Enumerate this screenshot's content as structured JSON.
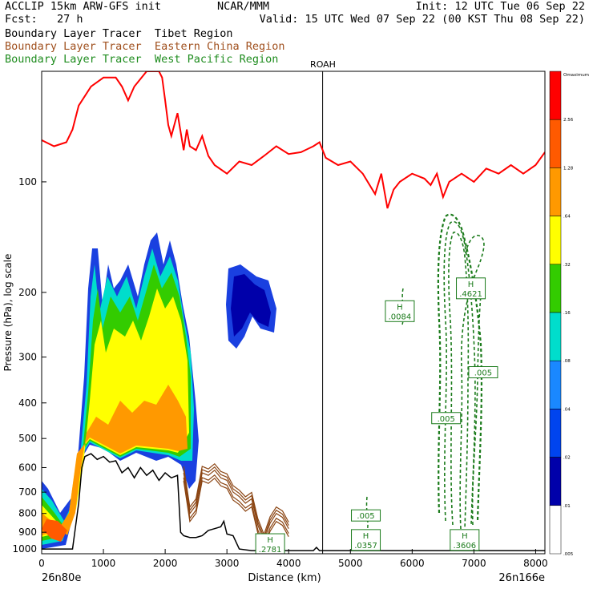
{
  "header": {
    "model": "ACCLIP 15km ARW-GFS init",
    "forecast": "Fcst:   27 h",
    "center": "NCAR/MMM",
    "init": "Init: 12 UTC Tue 06 Sep 22",
    "valid": "Valid: 15 UTC Wed 07 Sep 22 (00 KST Thu 08 Sep 22)"
  },
  "legend": [
    {
      "label": "Boundary Layer Tracer  Tibet Region",
      "color": "#000000"
    },
    {
      "label": "Boundary Layer Tracer  Eastern China Region",
      "color": "#a0501e"
    },
    {
      "label": "Boundary Layer Tracer  West Pacific Region",
      "color": "#1e8c1e"
    }
  ],
  "colors": {
    "tropopause": "#ff0000",
    "terrain": "#000000",
    "eastern_china_contour": "#8b4513",
    "west_pacific_contour": "#1a7a1a",
    "label_box": "#1a7a1a"
  },
  "chart_data": {
    "type": "heatmap",
    "xlabel": "Distance (km)",
    "ylabel": "Pressure (hPa), log scale",
    "x_ticks": [
      0,
      1000,
      2000,
      3000,
      4000,
      5000,
      6000,
      7000,
      8000
    ],
    "y_ticks": [
      100,
      200,
      300,
      400,
      500,
      600,
      700,
      800,
      900,
      1000
    ],
    "xlim": [
      0,
      8150
    ],
    "ylim": [
      1030,
      50
    ],
    "y_scale": "log",
    "endpoint_labels": {
      "left": "26n80e",
      "right": "26n166e"
    },
    "marker": {
      "label": "ROAH",
      "x": 4550
    },
    "colorbar": {
      "labels": [
        "Omaximum",
        "2.56",
        "1.28",
        ".64",
        ".32",
        ".16",
        ".08",
        ".04",
        ".02",
        ".01",
        ".005"
      ],
      "colors": [
        "#ff0000",
        "#ff5a00",
        "#ff9900",
        "#ffff00",
        "#33cc00",
        "#00ddcc",
        "#1a88ff",
        "#0044ee",
        "#0000aa",
        "#ffffff"
      ]
    },
    "tropopause": {
      "x": [
        0,
        200,
        400,
        500,
        600,
        800,
        1000,
        1200,
        1300,
        1400,
        1500,
        1700,
        1900,
        1950,
        2000,
        2050,
        2100,
        2200,
        2300,
        2350,
        2400,
        2500,
        2600,
        2700,
        2800,
        3000,
        3200,
        3400,
        3600,
        3800,
        4000,
        4200,
        4400,
        4500,
        4600,
        4800,
        5000,
        5200,
        5400,
        5500,
        5600,
        5700,
        5800,
        6000,
        6200,
        6300,
        6400,
        6500,
        6600,
        6800,
        7000,
        7200,
        7400,
        7600,
        7800,
        8000,
        8150
      ],
      "y": [
        77,
        80,
        78,
        72,
        62,
        55,
        52,
        52,
        55,
        60,
        55,
        50,
        50,
        52,
        60,
        70,
        75,
        65,
        82,
        72,
        80,
        82,
        75,
        85,
        90,
        95,
        88,
        90,
        85,
        80,
        84,
        83,
        80,
        78,
        86,
        90,
        88,
        95,
        108,
        95,
        118,
        105,
        100,
        95,
        98,
        102,
        95,
        110,
        100,
        95,
        100,
        92,
        95,
        90,
        95,
        90,
        83
      ]
    },
    "terrain": {
      "x": [
        0,
        100,
        200,
        300,
        400,
        500,
        600,
        650,
        700,
        800,
        900,
        1000,
        1100,
        1200,
        1300,
        1400,
        1500,
        1600,
        1700,
        1800,
        1900,
        2000,
        2100,
        2200,
        2250,
        2300,
        2400,
        2500,
        2600,
        2700,
        2800,
        2900,
        2950,
        3000,
        3100,
        3200,
        3400,
        3600,
        3800,
        4000,
        4200,
        4400,
        4450,
        4500,
        4550,
        4600,
        4800,
        5000,
        6000,
        7000,
        8000,
        8150
      ],
      "y": [
        1000,
        1000,
        1000,
        1000,
        1000,
        1000,
        750,
        600,
        560,
        550,
        570,
        560,
        580,
        575,
        620,
        600,
        640,
        600,
        630,
        610,
        650,
        620,
        640,
        630,
        900,
        920,
        930,
        930,
        920,
        890,
        880,
        870,
        840,
        910,
        920,
        1000,
        1010,
        1010,
        1010,
        1010,
        1010,
        1010,
        990,
        1010,
        1010,
        1010,
        1010,
        1010,
        1010,
        1010,
        1010,
        1010
      ]
    },
    "eastern_china_tracer": {
      "x": [
        2300,
        2400,
        2500,
        2600,
        2700,
        2800,
        2900,
        3000,
        3100,
        3200,
        3300,
        3400,
        3500,
        3600,
        3700,
        3800,
        3900,
        4000
      ],
      "y": [
        620,
        800,
        760,
        620,
        630,
        610,
        640,
        650,
        700,
        720,
        750,
        730,
        860,
        950,
        850,
        800,
        820,
        880
      ]
    },
    "boxes": [
      {
        "name": "tibet-max",
        "label": "H",
        "value": ".2781",
        "x": 3700,
        "p": 970
      },
      {
        "name": "wp-low-1",
        "label": "",
        "value": ".005",
        "x": 5250,
        "p": 810
      },
      {
        "name": "wp-low-2",
        "label": "H",
        "value": ".0357",
        "x": 5250,
        "p": 945
      },
      {
        "name": "wp-mid",
        "label": "H",
        "value": ".0084",
        "x": 5800,
        "p": 225
      },
      {
        "name": "wp-upper",
        "label": "H",
        "value": ".4621",
        "x": 6950,
        "p": 195
      },
      {
        "name": "wp-side",
        "label": "",
        "value": ".005",
        "x": 7150,
        "p": 330
      },
      {
        "name": "wp-center",
        "label": "",
        "value": ".005",
        "x": 6550,
        "p": 440
      },
      {
        "name": "wp-surface",
        "label": "H",
        "value": ".3606",
        "x": 6850,
        "p": 945
      }
    ]
  }
}
